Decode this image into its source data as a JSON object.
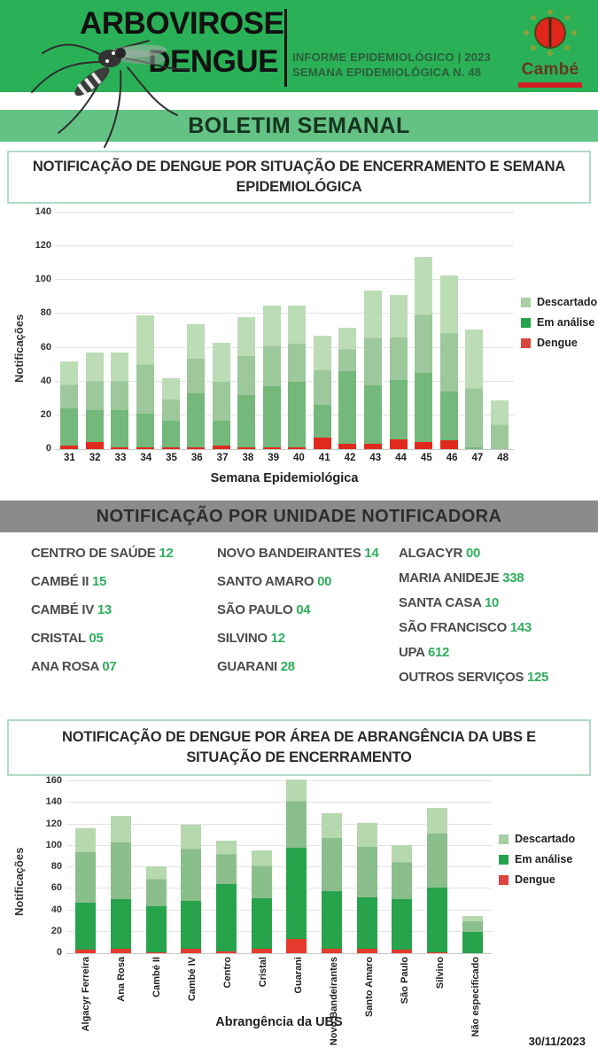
{
  "header": {
    "title_line1": "ARBOVIROSE",
    "title_line2": "DENGUE",
    "subtitle_line1": "INFORME EPIDEMIOLÓGICO | 2023",
    "subtitle_line2": "SEMANA EPIDEMIOLÓGICA  N. 48",
    "logo_text": "Cambé"
  },
  "banner": {
    "boletim": "BOLETIM SEMANAL"
  },
  "sections": {
    "chart1_title": "NOTIFICAÇÃO DE DENGUE POR SITUAÇÃO DE ENCERRAMENTO E SEMANA EPIDEMIOLÓGICA",
    "units_title": "NOTIFICAÇÃO POR UNIDADE NOTIFICADORA",
    "chart2_title": "NOTIFICAÇÃO DE DENGUE POR ÁREA DE ABRANGÊNCIA DA UBS E SITUAÇÃO DE ENCERRAMENTO"
  },
  "units": {
    "columns": [
      [
        {
          "name": "CENTRO  DE SAÚDE",
          "value": "12"
        },
        {
          "name": "CAMBÉ II",
          "value": "15"
        },
        {
          "name": "CAMBÉ IV",
          "value": "13"
        },
        {
          "name": "CRISTAL",
          "value": "05"
        },
        {
          "name": "ANA ROSA",
          "value": "07"
        }
      ],
      [
        {
          "name": "NOVO BANDEIRANTES",
          "value": "14"
        },
        {
          "name": "SANTO AMARO",
          "value": "00"
        },
        {
          "name": "SÃO PAULO",
          "value": "04"
        },
        {
          "name": "SILVINO",
          "value": "12"
        },
        {
          "name": "GUARANI",
          "value": "28"
        }
      ],
      [
        {
          "name": "ALGACYR",
          "value": "00"
        },
        {
          "name": "MARIA ANIDEJE",
          "value": "338"
        },
        {
          "name": "SANTA CASA",
          "value": "10"
        },
        {
          "name": "SÃO FRANCISCO",
          "value": "143"
        },
        {
          "name": "UPA",
          "value": "612"
        },
        {
          "name": "OUTROS SERVIÇOS",
          "value": "125"
        }
      ]
    ]
  },
  "footer": {
    "date": "30/11/2023"
  },
  "colors": {
    "header_green": "#2ab157",
    "boletim_band_green": "#63c284",
    "titlebox_border": "#aedcc3",
    "gray_banner": "#8b8b8b",
    "unit_number_green": "#2fae5b"
  },
  "chart_data": [
    {
      "type": "bar",
      "stacked": true,
      "title": "Notificação de dengue por situação de encerramento e semana epidemiológica",
      "xlabel": "Semana Epidemiológica",
      "ylabel": "Notificações",
      "ylim": [
        0,
        140
      ],
      "ytick_step": 20,
      "grid": true,
      "legend_position": "right",
      "legend": [
        "Descartado",
        "Em análise",
        "Dengue"
      ],
      "categories": [
        "31",
        "32",
        "33",
        "34",
        "35",
        "36",
        "37",
        "38",
        "39",
        "40",
        "41",
        "42",
        "43",
        "44",
        "45",
        "46",
        "47",
        "48"
      ],
      "series": [
        {
          "name": "Dengue",
          "color": "#e02a1e",
          "values": [
            2,
            4,
            1,
            1,
            1,
            1,
            2,
            1,
            1,
            1,
            7,
            3,
            3,
            6,
            4,
            5,
            0,
            0
          ]
        },
        {
          "name": "Em análise",
          "color": "#74b87b",
          "values": [
            22,
            19,
            22,
            20,
            16,
            32,
            15,
            31,
            36,
            39,
            19,
            43,
            35,
            35,
            41,
            29,
            1,
            0
          ]
        },
        {
          "name": "Descartado",
          "color": "#9cc89b",
          "color_light": "#bcdcb5",
          "values": [
            28,
            34,
            34,
            58,
            25,
            41,
            46,
            46,
            48,
            45,
            41,
            26,
            56,
            50,
            69,
            69,
            70,
            29
          ]
        }
      ],
      "totals": [
        52,
        57,
        57,
        79,
        42,
        74,
        63,
        78,
        85,
        85,
        67,
        72,
        94,
        91,
        114,
        103,
        71,
        29
      ]
    },
    {
      "type": "bar",
      "stacked": true,
      "title": "Notificação de dengue por área de abrangência da UBS e situação de encerramento",
      "xlabel": "Abrangência da UBS",
      "ylabel": "Notificações",
      "ylim": [
        0,
        160
      ],
      "ytick_step": 20,
      "grid": true,
      "legend_position": "right",
      "legend": [
        "Descartado",
        "Em análise",
        "Dengue"
      ],
      "categories": [
        "Algacyr Ferreira",
        "Ana Rosa",
        "Cambé II",
        "Cambé IV",
        "Centro",
        "Cristal",
        "Guarani",
        "Novo Bandeirantes",
        "Santo Amaro",
        "São Paulo",
        "Silvino",
        "Não especificado"
      ],
      "series": [
        {
          "name": "Dengue",
          "color": "#e63a2e",
          "values": [
            3,
            4,
            1,
            4,
            2,
            4,
            13,
            4,
            4,
            3,
            1,
            0
          ]
        },
        {
          "name": "Em análise",
          "color": "#27a34c",
          "values": [
            44,
            46,
            43,
            45,
            62,
            47,
            85,
            54,
            48,
            47,
            60,
            20
          ]
        },
        {
          "name": "Descartado",
          "color": "#8abe8b",
          "color_light": "#b6d8af",
          "values": [
            69,
            78,
            37,
            71,
            41,
            45,
            64,
            72,
            69,
            51,
            74,
            15
          ]
        }
      ],
      "totals": [
        116,
        128,
        81,
        120,
        105,
        96,
        162,
        130,
        121,
        101,
        135,
        35
      ]
    }
  ],
  "legend_swatches": {
    "descartado": "#a9cfa4",
    "em_analise": "#26a24c",
    "dengue": "#d9453f"
  }
}
